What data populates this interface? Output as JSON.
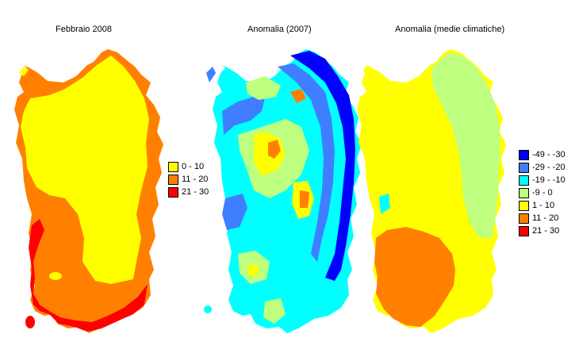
{
  "panels": [
    {
      "title": "Febbraio 2008",
      "legend": [
        {
          "label": "0 - 10",
          "color": "#ffff00"
        },
        {
          "label": "11 - 20",
          "color": "#ff8000"
        },
        {
          "label": "21 - 30",
          "color": "#ff0000"
        }
      ]
    },
    {
      "title": "Anomalia (2007)"
    },
    {
      "title": "Anomalia (medie climatiche)",
      "legend": [
        {
          "label": "-49 - -30",
          "color": "#0000ff"
        },
        {
          "label": "-29 - -20",
          "color": "#3f7fff"
        },
        {
          "label": "-19 - -10",
          "color": "#00ffff"
        },
        {
          "label": "-9 - 0",
          "color": "#bfff80"
        },
        {
          "label": "1 - 10",
          "color": "#ffff00"
        },
        {
          "label": "11 - 20",
          "color": "#ff8000"
        },
        {
          "label": "21 - 30",
          "color": "#ff0000"
        }
      ]
    }
  ]
}
